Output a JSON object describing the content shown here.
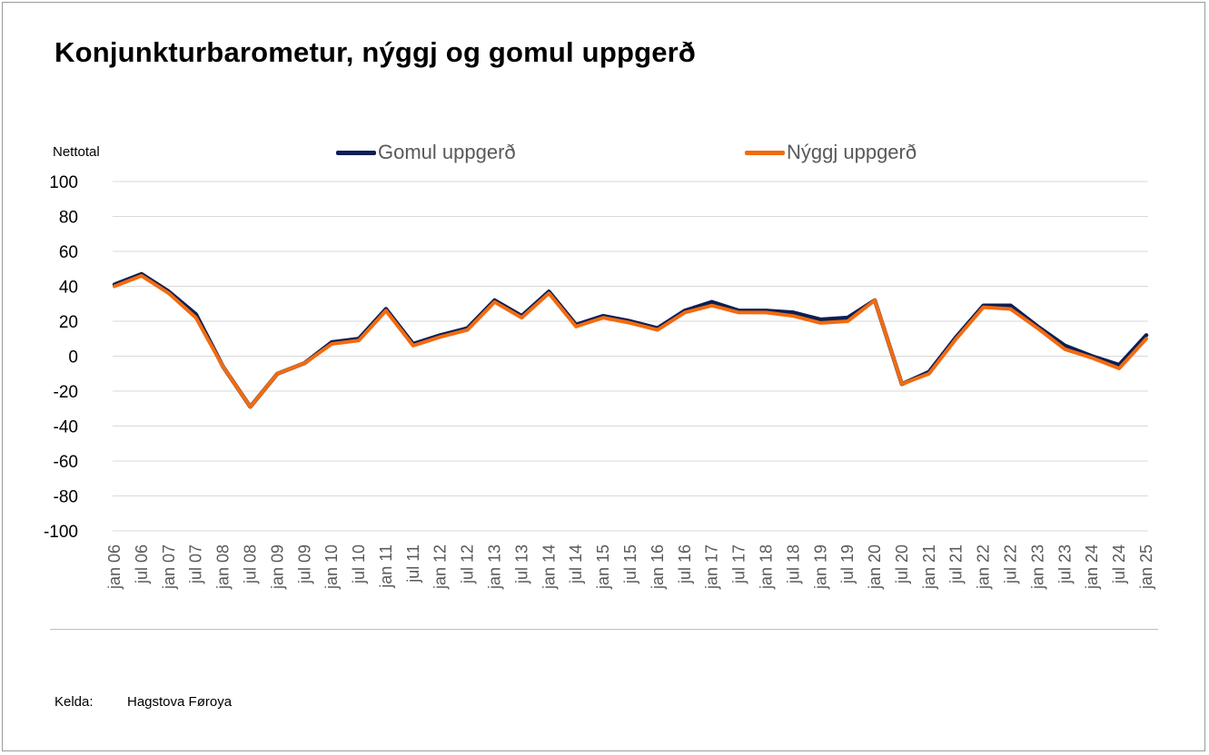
{
  "title": "Konjunkturbarometur, nýggj og gomul uppgerð",
  "colors": {
    "gomul": "#0b1e54",
    "nyggj": "#f26b10",
    "grid": "#d9d9d9"
  },
  "source": {
    "label": "Kelda:",
    "value": "Hagstova Føroya"
  },
  "chart_data": {
    "type": "line",
    "title": "Konjunkturbarometur, nýggj og gomul uppgerð",
    "ylabel": "Nettotal",
    "xlabel": "",
    "ylim": [
      -100,
      100
    ],
    "yticks": [
      "100",
      "80",
      "60",
      "40",
      "20",
      "0",
      "-20",
      "-40",
      "-60",
      "-80",
      "-100"
    ],
    "ytick_values": [
      100,
      80,
      60,
      40,
      20,
      0,
      -20,
      -40,
      -60,
      -80,
      -100
    ],
    "grid": true,
    "legend": "top",
    "categories": [
      "jan 06",
      "jul 06",
      "jan 07",
      "jul 07",
      "jan 08",
      "jul 08",
      "jan 09",
      "jul 09",
      "jan 10",
      "jul 10",
      "jan 11",
      "jul 11",
      "jan 12",
      "jul 12",
      "jan 13",
      "jul 13",
      "jan 14",
      "jul 14",
      "jan 15",
      "jul 15",
      "jan 16",
      "jul 16",
      "jan 17",
      "jul 17",
      "jan 18",
      "jul 18",
      "jan 19",
      "jul 19",
      "jan 20",
      "jul 20",
      "jan 21",
      "jul 21",
      "jan 22",
      "jul 22",
      "jan 23",
      "jul 23",
      "jan 24",
      "jul 24",
      "jan 25"
    ],
    "series": [
      {
        "name": "Gomul uppgerð",
        "values": [
          41,
          47,
          37,
          24,
          -6,
          -29,
          -10,
          -4,
          8,
          10,
          27,
          7,
          12,
          16,
          32,
          23,
          37,
          18,
          23,
          20,
          16,
          26,
          31,
          26,
          26,
          25,
          21,
          22,
          32,
          -16,
          -9,
          11,
          29,
          29,
          17,
          6,
          0,
          -5,
          12
        ]
      },
      {
        "name": "Nýggj uppgerð",
        "values": [
          40,
          46,
          36,
          22,
          -6,
          -29,
          -10,
          -4,
          7,
          9,
          26,
          6,
          11,
          15,
          31,
          22,
          36,
          17,
          22,
          19,
          15,
          25,
          29,
          25,
          25,
          23,
          19,
          20,
          32,
          -16,
          -10,
          10,
          28,
          27,
          16,
          4,
          -1,
          -7,
          10
        ]
      }
    ]
  }
}
